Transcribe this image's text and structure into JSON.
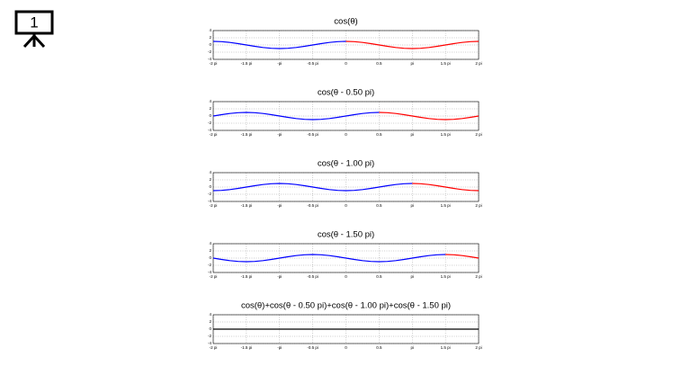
{
  "slide_number": "1",
  "chart_data": [
    {
      "type": "line",
      "title": "cos(θ)",
      "x": [
        -2,
        -1.875,
        -1.75,
        -1.625,
        -1.5,
        -1.375,
        -1.25,
        -1.125,
        -1,
        -0.875,
        -0.75,
        -0.625,
        -0.5,
        -0.375,
        -0.25,
        -0.125,
        0,
        0.125,
        0.25,
        0.375,
        0.5,
        0.625,
        0.75,
        0.875,
        1,
        1.125,
        1.25,
        1.375,
        1.5,
        1.625,
        1.75,
        1.875,
        2
      ],
      "series": [
        {
          "color": "#0000ff",
          "values": [
            1,
            0.92,
            0.71,
            0.38,
            0,
            -0.38,
            -0.71,
            -0.92,
            -1,
            -0.92,
            -0.71,
            -0.38,
            0,
            0.38,
            0.71,
            0.92,
            1,
            null,
            null,
            null,
            null,
            null,
            null,
            null,
            null,
            null,
            null,
            null,
            null,
            null,
            null,
            null,
            null
          ]
        },
        {
          "color": "#ff0000",
          "values": [
            null,
            null,
            null,
            null,
            null,
            null,
            null,
            null,
            null,
            null,
            null,
            null,
            null,
            null,
            null,
            null,
            1,
            0.92,
            0.71,
            0.38,
            0,
            -0.38,
            -0.71,
            -0.92,
            -1,
            -0.92,
            -0.71,
            -0.38,
            0,
            0.38,
            0.71,
            0.92,
            1
          ]
        }
      ],
      "xlim": [
        -2,
        2
      ],
      "xticks": [
        {
          "value": -2,
          "label": "-2 pi"
        },
        {
          "value": -1.5,
          "label": "-1.5 pi"
        },
        {
          "value": -1,
          "label": "-pi"
        },
        {
          "value": -0.5,
          "label": "-0.5 pi"
        },
        0,
        0.5,
        {
          "value": 1,
          "label": "pi"
        },
        {
          "value": 1.5,
          "label": "1.5 pi"
        },
        {
          "value": 2,
          "label": "2 pi"
        }
      ],
      "ylim": [
        -4,
        4
      ],
      "yticks": [
        -4,
        -2,
        0,
        2,
        4
      ],
      "grid": true
    },
    {
      "type": "line",
      "title": "cos(θ - 0.50 pi)",
      "x": [
        -2,
        -1.875,
        -1.75,
        -1.625,
        -1.5,
        -1.375,
        -1.25,
        -1.125,
        -1,
        -0.875,
        -0.75,
        -0.625,
        -0.5,
        -0.375,
        -0.25,
        -0.125,
        0,
        0.125,
        0.25,
        0.375,
        0.5,
        0.625,
        0.75,
        0.875,
        1,
        1.125,
        1.25,
        1.375,
        1.5,
        1.625,
        1.75,
        1.875,
        2
      ],
      "series": [
        {
          "color": "#0000ff",
          "values": [
            0,
            0.38,
            0.71,
            0.92,
            1,
            0.92,
            0.71,
            0.38,
            0,
            -0.38,
            -0.71,
            -0.92,
            -1,
            -0.92,
            -0.71,
            -0.38,
            0,
            0.38,
            0.71,
            0.92,
            1,
            null,
            null,
            null,
            null,
            null,
            null,
            null,
            null,
            null,
            null,
            null,
            null
          ]
        },
        {
          "color": "#ff0000",
          "values": [
            null,
            null,
            null,
            null,
            null,
            null,
            null,
            null,
            null,
            null,
            null,
            null,
            null,
            null,
            null,
            null,
            null,
            null,
            null,
            null,
            1,
            0.92,
            0.71,
            0.38,
            0,
            -0.38,
            -0.71,
            -0.92,
            -1,
            -0.92,
            -0.71,
            -0.38,
            0
          ]
        }
      ],
      "xlim": [
        -2,
        2
      ],
      "xticks": [
        {
          "value": -2,
          "label": "-2 pi"
        },
        {
          "value": -1.5,
          "label": "-1.5 pi"
        },
        {
          "value": -1,
          "label": "-pi"
        },
        {
          "value": -0.5,
          "label": "-0.5 pi"
        },
        0,
        0.5,
        {
          "value": 1,
          "label": "pi"
        },
        {
          "value": 1.5,
          "label": "1.5 pi"
        },
        {
          "value": 2,
          "label": "2 pi"
        }
      ],
      "ylim": [
        -4,
        4
      ],
      "yticks": [
        -4,
        -2,
        0,
        2,
        4
      ],
      "grid": true
    },
    {
      "type": "line",
      "title": "cos(θ - 1.00 pi)",
      "x": [
        -2,
        -1.875,
        -1.75,
        -1.625,
        -1.5,
        -1.375,
        -1.25,
        -1.125,
        -1,
        -0.875,
        -0.75,
        -0.625,
        -0.5,
        -0.375,
        -0.25,
        -0.125,
        0,
        0.125,
        0.25,
        0.375,
        0.5,
        0.625,
        0.75,
        0.875,
        1,
        1.125,
        1.25,
        1.375,
        1.5,
        1.625,
        1.75,
        1.875,
        2
      ],
      "series": [
        {
          "color": "#0000ff",
          "values": [
            -1,
            -0.92,
            -0.71,
            -0.38,
            0,
            0.38,
            0.71,
            0.92,
            1,
            0.92,
            0.71,
            0.38,
            0,
            -0.38,
            -0.71,
            -0.92,
            -1,
            -0.92,
            -0.71,
            -0.38,
            0,
            0.38,
            0.71,
            0.92,
            1,
            null,
            null,
            null,
            null,
            null,
            null,
            null,
            null
          ]
        },
        {
          "color": "#ff0000",
          "values": [
            null,
            null,
            null,
            null,
            null,
            null,
            null,
            null,
            null,
            null,
            null,
            null,
            null,
            null,
            null,
            null,
            null,
            null,
            null,
            null,
            null,
            null,
            null,
            null,
            1,
            0.92,
            0.71,
            0.38,
            0,
            -0.38,
            -0.71,
            -0.92,
            -1
          ]
        }
      ],
      "xlim": [
        -2,
        2
      ],
      "xticks": [
        {
          "value": -2,
          "label": "-2 pi"
        },
        {
          "value": -1.5,
          "label": "-1.5 pi"
        },
        {
          "value": -1,
          "label": "-pi"
        },
        {
          "value": -0.5,
          "label": "-0.5 pi"
        },
        0,
        0.5,
        {
          "value": 1,
          "label": "pi"
        },
        {
          "value": 1.5,
          "label": "1.5 pi"
        },
        {
          "value": 2,
          "label": "2 pi"
        }
      ],
      "ylim": [
        -4,
        4
      ],
      "yticks": [
        -4,
        -2,
        0,
        2,
        4
      ],
      "grid": true
    },
    {
      "type": "line",
      "title": "cos(θ - 1.50 pi)",
      "x": [
        -2,
        -1.875,
        -1.75,
        -1.625,
        -1.5,
        -1.375,
        -1.25,
        -1.125,
        -1,
        -0.875,
        -0.75,
        -0.625,
        -0.5,
        -0.375,
        -0.25,
        -0.125,
        0,
        0.125,
        0.25,
        0.375,
        0.5,
        0.625,
        0.75,
        0.875,
        1,
        1.125,
        1.25,
        1.375,
        1.5,
        1.625,
        1.75,
        1.875,
        2
      ],
      "series": [
        {
          "color": "#0000ff",
          "values": [
            0,
            -0.38,
            -0.71,
            -0.92,
            -1,
            -0.92,
            -0.71,
            -0.38,
            0,
            0.38,
            0.71,
            0.92,
            1,
            0.92,
            0.71,
            0.38,
            0,
            -0.38,
            -0.71,
            -0.92,
            -1,
            -0.92,
            -0.71,
            -0.38,
            0,
            0.38,
            0.71,
            0.92,
            1,
            null,
            null,
            null,
            null
          ]
        },
        {
          "color": "#ff0000",
          "values": [
            null,
            null,
            null,
            null,
            null,
            null,
            null,
            null,
            null,
            null,
            null,
            null,
            null,
            null,
            null,
            null,
            null,
            null,
            null,
            null,
            null,
            null,
            null,
            null,
            null,
            null,
            null,
            null,
            1,
            0.92,
            0.71,
            0.38,
            0
          ]
        }
      ],
      "xlim": [
        -2,
        2
      ],
      "xticks": [
        {
          "value": -2,
          "label": "-2 pi"
        },
        {
          "value": -1.5,
          "label": "-1.5 pi"
        },
        {
          "value": -1,
          "label": "-pi"
        },
        {
          "value": -0.5,
          "label": "-0.5 pi"
        },
        0,
        0.5,
        {
          "value": 1,
          "label": "pi"
        },
        {
          "value": 1.5,
          "label": "1.5 pi"
        },
        {
          "value": 2,
          "label": "2 pi"
        }
      ],
      "ylim": [
        -4,
        4
      ],
      "yticks": [
        -4,
        -2,
        0,
        2,
        4
      ],
      "grid": true
    },
    {
      "type": "line",
      "title": "cos(θ)+cos(θ - 0.50 pi)+cos(θ - 1.00 pi)+cos(θ - 1.50 pi)",
      "x": [
        -2,
        -1.875,
        -1.75,
        -1.625,
        -1.5,
        -1.375,
        -1.25,
        -1.125,
        -1,
        -0.875,
        -0.75,
        -0.625,
        -0.5,
        -0.375,
        -0.25,
        -0.125,
        0,
        0.125,
        0.25,
        0.375,
        0.5,
        0.625,
        0.75,
        0.875,
        1,
        1.125,
        1.25,
        1.375,
        1.5,
        1.625,
        1.75,
        1.875,
        2
      ],
      "series": [
        {
          "color": "#000000",
          "values": [
            0,
            0,
            0,
            0,
            0,
            0,
            0,
            0,
            0,
            0,
            0,
            0,
            0,
            0,
            0,
            0,
            0,
            0,
            0,
            0,
            0,
            0,
            0,
            0,
            0,
            0,
            0,
            0,
            0,
            0,
            0,
            0,
            0
          ]
        }
      ],
      "xlim": [
        -2,
        2
      ],
      "xticks": [
        {
          "value": -2,
          "label": "-2 pi"
        },
        {
          "value": -1.5,
          "label": "-1.5 pi"
        },
        {
          "value": -1,
          "label": "-pi"
        },
        {
          "value": -0.5,
          "label": "-0.5 pi"
        },
        0,
        0.5,
        {
          "value": 1,
          "label": "pi"
        },
        {
          "value": 1.5,
          "label": "1.5 pi"
        },
        {
          "value": 2,
          "label": "2 pi"
        }
      ],
      "ylim": [
        -4,
        4
      ],
      "yticks": [
        -4,
        -2,
        0,
        2,
        4
      ],
      "grid": true
    }
  ]
}
